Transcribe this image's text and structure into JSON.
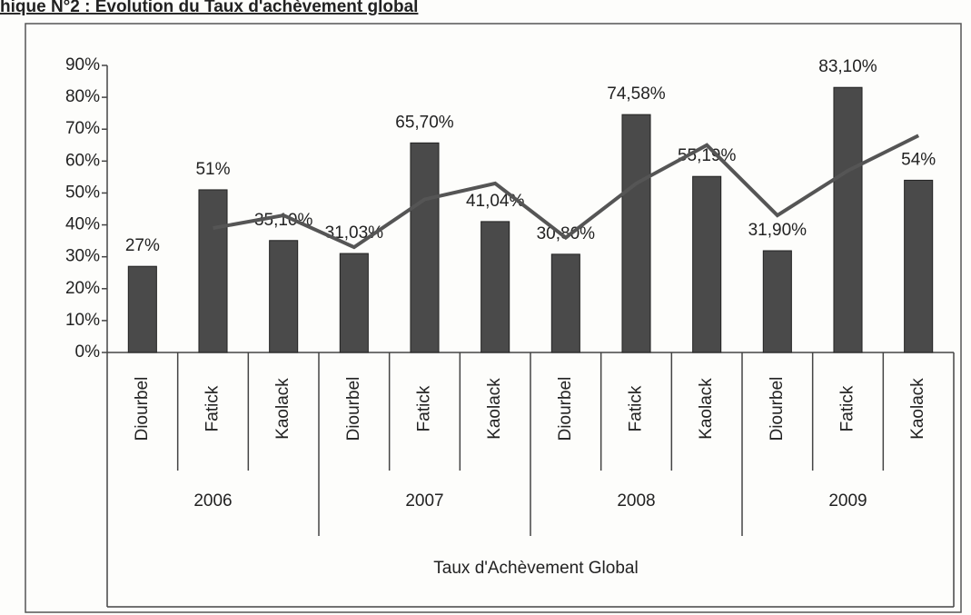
{
  "chart_data": {
    "type": "bar",
    "title": "hique N°2 : Evolution du Taux d'achèvement global",
    "xlabel": "Taux d'Achèvement Global",
    "categories": [
      "Diourbel",
      "Fatick",
      "Kaolack",
      "Diourbel",
      "Fatick",
      "Kaolack",
      "Diourbel",
      "Fatick",
      "Kaolack",
      "Diourbel",
      "Fatick",
      "Kaolack"
    ],
    "groups": [
      "2006",
      "2007",
      "2008",
      "2009"
    ],
    "values": [
      27,
      51,
      35.1,
      31.03,
      65.7,
      41.04,
      30.8,
      74.58,
      55.19,
      31.9,
      83.1,
      54
    ],
    "value_labels": [
      "27%",
      "51%",
      "35,10%",
      "31,03%",
      "65,70%",
      "41,04%",
      "30,80%",
      "74,58%",
      "55,19%",
      "31,90%",
      "83,10%",
      "54%"
    ],
    "color": "#4a4a4a",
    "trendline": {
      "color": "#555555",
      "values": [
        null,
        39,
        43,
        33,
        48,
        53,
        36,
        53,
        65,
        43,
        57,
        68
      ]
    },
    "ylim": [
      0,
      90
    ],
    "yticks": [
      {
        "value": 0,
        "label": "0%"
      },
      {
        "value": 10,
        "label": "10%"
      },
      {
        "value": 20,
        "label": "20%"
      },
      {
        "value": 30,
        "label": "30%"
      },
      {
        "value": 40,
        "label": "40%"
      },
      {
        "value": 50,
        "label": "50%"
      },
      {
        "value": 60,
        "label": "60%"
      },
      {
        "value": 70,
        "label": "70%"
      },
      {
        "value": 80,
        "label": "80%"
      },
      {
        "value": 90,
        "label": "90%"
      }
    ],
    "grid": false
  }
}
